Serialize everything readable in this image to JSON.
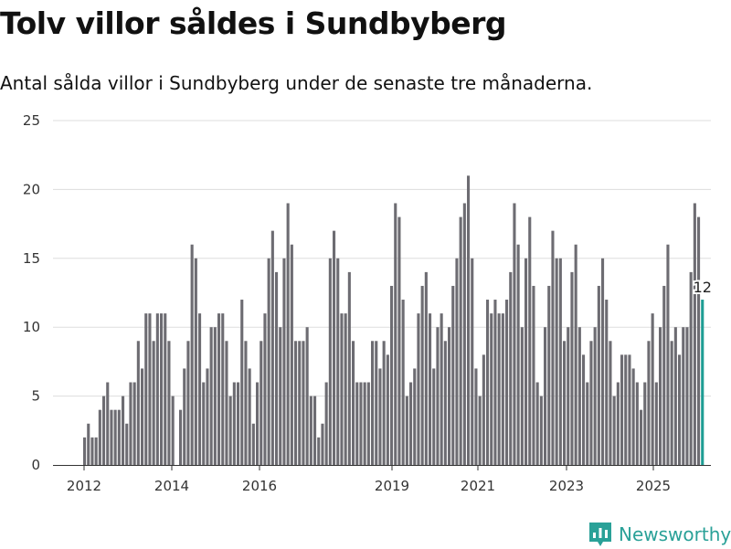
{
  "page": {
    "title": "Tolv villor såldes i Sundbyberg",
    "subtitle": "Antal sålda villor i Sundbyberg under de senaste tre månaderna."
  },
  "brand": {
    "name": "Newsworthy",
    "icon": "newsworthy-logo-icon",
    "color": "#2aa198"
  },
  "colors": {
    "bar": "#6d6c72",
    "highlight": "#1f9d94",
    "grid": "#dddddd",
    "axis": "#333333"
  },
  "chart_data": {
    "type": "bar",
    "ylim": [
      0,
      25
    ],
    "yticks": [
      0,
      5,
      10,
      15,
      20,
      25
    ],
    "xticks": [
      "2012",
      "2014",
      "2016",
      "2019",
      "2021",
      "2023",
      "2025"
    ],
    "grid": true,
    "highlight_last": true,
    "last_label": "12",
    "values": [
      2,
      3,
      2,
      2,
      4,
      5,
      6,
      4,
      4,
      4,
      5,
      3,
      6,
      6,
      9,
      7,
      11,
      11,
      9,
      11,
      11,
      11,
      9,
      5,
      0,
      4,
      7,
      9,
      16,
      15,
      11,
      6,
      7,
      10,
      10,
      11,
      11,
      9,
      5,
      6,
      6,
      12,
      9,
      7,
      3,
      6,
      9,
      11,
      15,
      17,
      14,
      10,
      15,
      19,
      16,
      9,
      9,
      9,
      10,
      5,
      5,
      2,
      3,
      6,
      15,
      17,
      15,
      11,
      11,
      14,
      9,
      6,
      6,
      6,
      6,
      9,
      9,
      7,
      9,
      8,
      13,
      19,
      18,
      12,
      5,
      6,
      7,
      11,
      13,
      14,
      11,
      7,
      10,
      11,
      9,
      10,
      13,
      15,
      18,
      19,
      21,
      15,
      7,
      5,
      8,
      12,
      11,
      12,
      11,
      11,
      12,
      14,
      19,
      16,
      10,
      15,
      18,
      13,
      6,
      5,
      10,
      13,
      17,
      15,
      15,
      9,
      10,
      14,
      16,
      10,
      8,
      6,
      9,
      10,
      13,
      15,
      12,
      9,
      5,
      6,
      8,
      8,
      8,
      7,
      6,
      4,
      6,
      9,
      11,
      6,
      10,
      13,
      16,
      9,
      10,
      8,
      10,
      10,
      14,
      19,
      18,
      12
    ]
  }
}
